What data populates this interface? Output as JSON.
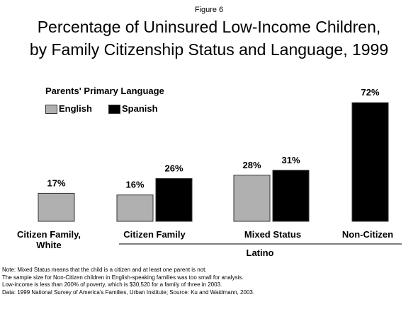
{
  "figure_label": "Figure 6",
  "title_lines": [
    "Percentage of Uninsured Low-Income Children,",
    "by Family Citizenship Status and Language, 1999"
  ],
  "colors": {
    "english": "#b0b0b0",
    "spanish": "#000000"
  },
  "chart_data": {
    "type": "bar",
    "title": "Percentage of Uninsured Low-Income Children, by Family Citizenship Status and Language, 1999",
    "categories": [
      "Citizen Family, White",
      "Citizen Family",
      "Mixed Status",
      "Non-Citizen"
    ],
    "group_label": "Latino",
    "legend_title": "Parents' Primary Language",
    "legend_placement": "top-left",
    "series": [
      {
        "name": "English",
        "values": [
          17,
          16,
          28,
          null
        ],
        "labels": [
          "17%",
          "16%",
          "28%",
          null
        ]
      },
      {
        "name": "Spanish",
        "values": [
          null,
          26,
          31,
          72
        ],
        "labels": [
          null,
          "26%",
          "31%",
          "72%"
        ]
      }
    ],
    "ylim": [
      0,
      80
    ],
    "grid": false,
    "xlabel": "",
    "ylabel": ""
  },
  "category_label_lines": [
    [
      "Citizen Family,",
      "White"
    ],
    [
      "Citizen Family"
    ],
    [
      "Mixed Status"
    ],
    [
      "Non-Citizen"
    ]
  ],
  "notes": [
    "Note: Mixed Status means that the child is a citizen and at least one parent is not.",
    "The sample size for Non-Citizen children in English-speaking families was too small for analysis.",
    "Low-income is less than 200% of poverty, which is $30,520 for a family of three in 2003.",
    "Data: 1999 National Survey of America's Families, Urban Institute; Source: Ku and Waidmann, 2003."
  ]
}
